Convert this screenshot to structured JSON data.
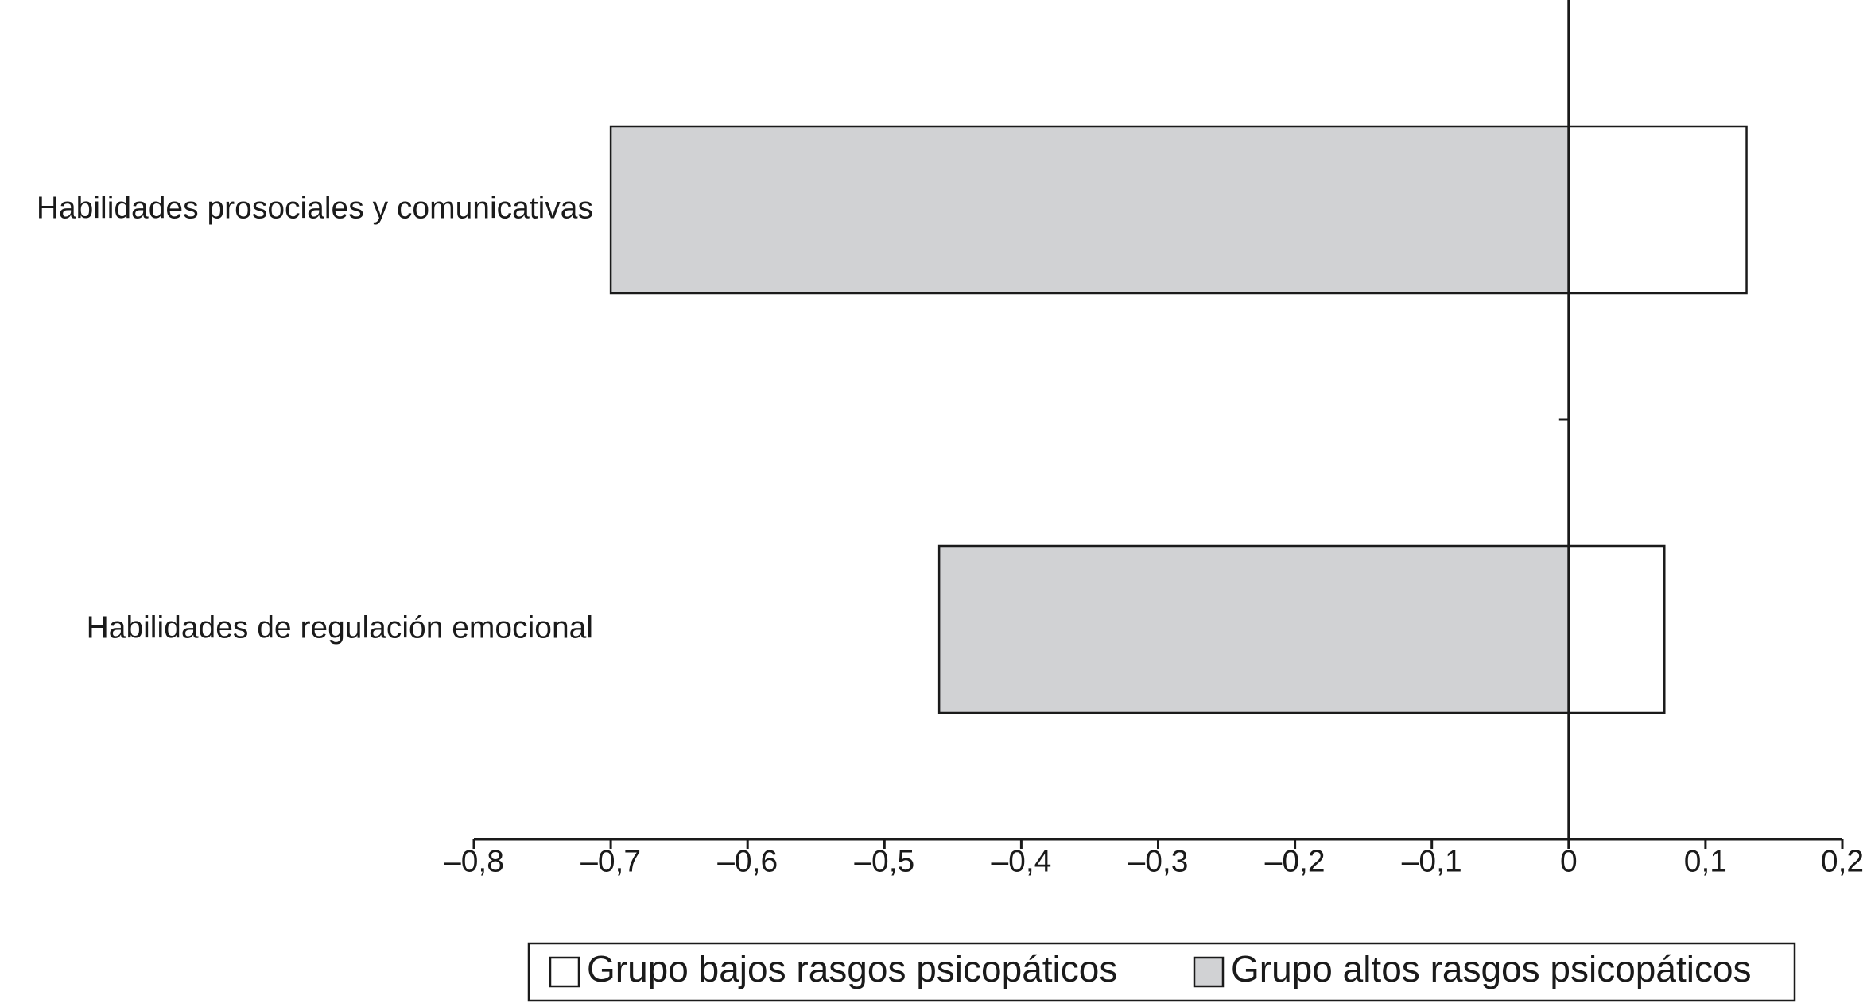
{
  "chart_data": {
    "type": "hbar",
    "categories": [
      "Habilidades prosociales y comunicativas",
      "Habilidades de regulación emocional"
    ],
    "series": [
      {
        "name": "Grupo bajos rasgos psicopáticos",
        "color": "#ffffff",
        "values": [
          0.13,
          0.07
        ]
      },
      {
        "name": "Grupo altos rasgos psicopáticos",
        "color": "#d1d2d4",
        "values": [
          -0.7,
          -0.46
        ]
      }
    ],
    "xlim": [
      -0.8,
      0.2
    ],
    "xticks": [
      {
        "value": -0.8,
        "label": "–0,8"
      },
      {
        "value": -0.7,
        "label": "–0,7"
      },
      {
        "value": -0.6,
        "label": "–0,6"
      },
      {
        "value": -0.5,
        "label": "–0,5"
      },
      {
        "value": -0.4,
        "label": "–0,4"
      },
      {
        "value": -0.3,
        "label": "–0,3"
      },
      {
        "value": -0.2,
        "label": "–0,2"
      },
      {
        "value": -0.1,
        "label": "–0,1"
      },
      0,
      {
        "value": 0.1,
        "label": "0,1"
      },
      {
        "value": 0.2,
        "label": "0,2"
      }
    ],
    "legend": "bottom",
    "grid": false
  }
}
